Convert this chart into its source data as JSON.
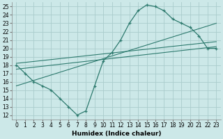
{
  "xlabel": "Humidex (Indice chaleur)",
  "bg_color": "#cce8e8",
  "grid_color": "#aacccc",
  "line_color": "#2d7a6e",
  "xlim": [
    -0.5,
    23.5
  ],
  "ylim": [
    11.5,
    25.5
  ],
  "xticks": [
    0,
    1,
    2,
    3,
    4,
    5,
    6,
    7,
    8,
    9,
    10,
    11,
    12,
    13,
    14,
    15,
    16,
    17,
    18,
    19,
    20,
    21,
    22,
    23
  ],
  "yticks": [
    12,
    13,
    14,
    15,
    16,
    17,
    18,
    19,
    20,
    21,
    22,
    23,
    24,
    25
  ],
  "main_x": [
    0,
    1,
    2,
    3,
    4,
    5,
    6,
    7,
    8,
    9,
    10,
    11,
    12,
    13,
    14,
    15,
    16,
    17,
    18,
    19,
    20,
    21,
    22,
    23
  ],
  "main_y": [
    18,
    17,
    16,
    15.5,
    15,
    14,
    13,
    12,
    12.5,
    15.5,
    18.5,
    19.5,
    21,
    23,
    24.5,
    25.2,
    25,
    24.5,
    23.5,
    23,
    22.5,
    21.5,
    20,
    20
  ],
  "line1_x": [
    0,
    23
  ],
  "line1_y": [
    17.5,
    20.2
  ],
  "line2_x": [
    0,
    23
  ],
  "line2_y": [
    18.2,
    20.8
  ],
  "line3_x": [
    0,
    23
  ],
  "line3_y": [
    15.5,
    23.0
  ]
}
